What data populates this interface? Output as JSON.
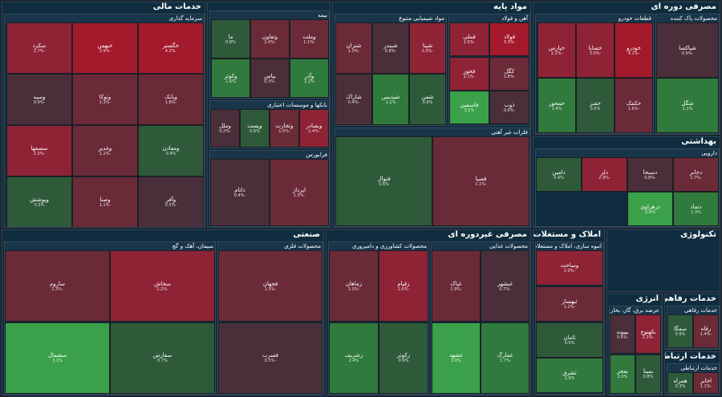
{
  "sectors": {
    "financial": "خدمات مالی",
    "basic_materials": "مواد پایه",
    "consumer_cyclical": "مصرفی دوره ای",
    "healthcare": "بهداشتی",
    "industrial": "صنعتی",
    "consumer_non_cyclical": "مصرفی غیردوره ای",
    "real_estate": "املاک و مستغلات",
    "technology": "تکنولوژی",
    "energy": "انرژی",
    "welfare": "خدمات رفاهی",
    "telecom": "خدمات ارتباطی"
  },
  "industries": [
    {
      "title": "سرمایه گذاری",
      "tiles": [
        [
          "خگستر",
          "-4.2%",
          "r4"
        ],
        [
          "خبهمن",
          "-3.9%",
          "r4"
        ],
        [
          "سکرد",
          "-2.7%",
          "r3"
        ],
        [
          "وبانک",
          "-1.8%",
          "r2"
        ],
        [
          "وتوکا",
          "-1.3%",
          "r2"
        ],
        [
          "وسپه",
          "-0.9%",
          "r1"
        ],
        [
          "ومعادن",
          "0.4%",
          "g1"
        ],
        [
          "وغدیر",
          "-1.2%",
          "r2"
        ],
        [
          "سصفها",
          "-2.3%",
          "r3"
        ],
        [
          "وآفر",
          "-0.5%",
          "r1"
        ],
        [
          "وصنا",
          "-1.1%",
          "r2"
        ],
        [
          "وپوشش",
          "0.3%",
          "g1"
        ]
      ]
    },
    {
      "title": "بیمه",
      "tiles": [
        [
          "وملت",
          "-1.1%",
          "r2"
        ],
        [
          "وتعاون",
          "-1.4%",
          "r2"
        ],
        [
          "ما",
          "0.8%",
          "g1"
        ],
        [
          "وآذر",
          "2.2%",
          "g2"
        ],
        [
          "بپاس",
          "-0.3%",
          "r1"
        ],
        [
          "وکوثر",
          "1.6%",
          "g2"
        ]
      ]
    },
    {
      "title": "بانکها و موسسات اعتباری",
      "tiles": [
        [
          "وبصادر",
          "-2.4%",
          "r3"
        ],
        [
          "وتجارت",
          "-1.0%",
          "r2"
        ],
        [
          "وپست",
          "0.6%",
          "g1"
        ],
        [
          "وملل",
          "-0.2%",
          "r1"
        ]
      ]
    },
    {
      "title": "فرابورس",
      "tiles": [
        [
          "اپرداز",
          "-1.5%",
          "r2"
        ],
        [
          "داتام",
          "-0.4%",
          "r1"
        ]
      ]
    },
    {
      "title": "مواد شیمیایی متنوع",
      "tiles": [
        [
          "شپنا",
          "-2.0%",
          "r3"
        ],
        [
          "شبندر",
          "-0.8%",
          "r1"
        ],
        [
          "شتران",
          "-1.3%",
          "r2"
        ],
        [
          "شفن",
          "0.9%",
          "g1"
        ],
        [
          "شپدیس",
          "1.2%",
          "g2"
        ],
        [
          "شاراک",
          "-0.4%",
          "r1"
        ]
      ]
    },
    {
      "title": "آهن و فولاد",
      "tiles": [
        [
          "فولاد",
          "-3.3%",
          "r4"
        ],
        [
          "فملی",
          "-2.5%",
          "r3"
        ],
        [
          "کگل",
          "-1.8%",
          "r2"
        ],
        [
          "فخوز",
          "-2.1%",
          "r3"
        ],
        [
          "ذوب",
          "-0.6%",
          "r1"
        ],
        [
          "فاسمین",
          "3.5%",
          "g3"
        ]
      ]
    },
    {
      "title": "فلزات غیر آهنی",
      "tiles": [
        [
          "فسپا",
          "-1.1%",
          "r2"
        ],
        [
          "فنوال",
          "0.6%",
          "g1"
        ]
      ]
    },
    {
      "title": "قطعات خودرو",
      "tiles": [
        [
          "خودرو",
          "-4.1%",
          "r4"
        ],
        [
          "خساپا",
          "-3.0%",
          "r3"
        ],
        [
          "خپارس",
          "-2.2%",
          "r3"
        ],
        [
          "خکمک",
          "-1.6%",
          "r2"
        ],
        [
          "خفنر",
          "0.5%",
          "g1"
        ],
        [
          "خمحور",
          "1.4%",
          "g2"
        ]
      ]
    },
    {
      "title": "محصولات پاک کننده",
      "tiles": [
        [
          "شپاکسا",
          "-0.9%",
          "r1"
        ],
        [
          "شگل",
          "1.1%",
          "g2"
        ]
      ]
    },
    {
      "title": "دارویی",
      "tiles": [
        [
          "دجابر",
          "-1.7%",
          "r2"
        ],
        [
          "دسبحا",
          "-0.8%",
          "r1"
        ],
        [
          "دلر",
          "-2.9%",
          "r3"
        ],
        [
          "دامین",
          "0.4%",
          "g1"
        ],
        [
          "دتماد",
          "1.3%",
          "g2"
        ],
        [
          "دزهراوی",
          "2.8%",
          "g3"
        ]
      ]
    },
    {
      "title": "سیمان، آهک و گچ",
      "tiles": [
        [
          "سخاش",
          "-2.2%",
          "r3"
        ],
        [
          "ساروم",
          "-1.3%",
          "r2"
        ],
        [
          "سفارس",
          "0.7%",
          "g1"
        ],
        [
          "سشمال",
          "3.1%",
          "g3"
        ]
      ]
    },
    {
      "title": "محصولات فلزی",
      "tiles": [
        [
          "فجهان",
          "-1.5%",
          "r2"
        ],
        [
          "فسرب",
          "-0.5%",
          "r1"
        ]
      ]
    },
    {
      "title": "انبوه سازی، املاک و مستغلات",
      "tiles": [
        [
          "وساخت",
          "-2.0%",
          "r3"
        ],
        [
          "ثبهساز",
          "-1.2%",
          "r2"
        ],
        [
          "ثامان",
          "0.5%",
          "g1"
        ],
        [
          "ثشرق",
          "1.9%",
          "g2"
        ]
      ]
    },
    {
      "title": "محصولات کشاورزی و دامپروری",
      "tiles": [
        [
          "زقیام",
          "-2.6%",
          "r3"
        ],
        [
          "زماهان",
          "-1.0%",
          "r2"
        ],
        [
          "زکوثر",
          "0.9%",
          "g1"
        ],
        [
          "زشریف",
          "2.4%",
          "g2"
        ]
      ]
    },
    {
      "title": "محصولات غذایی",
      "tiles": [
        [
          "غبشهر",
          "-0.7%",
          "r1"
        ],
        [
          "غپاک",
          "-1.9%",
          "r2"
        ],
        [
          "غمارگ",
          "1.7%",
          "g2"
        ],
        [
          "غشهد",
          "3.0%",
          "g3"
        ]
      ]
    },
    {
      "title": "عرضه برق، گاز، بخار و آب گرم",
      "tiles": [
        [
          "بکهنوج",
          "-2.3%",
          "r3"
        ],
        [
          "بپیوند",
          "-0.6%",
          "r1"
        ],
        [
          "بمپنا",
          "0.8%",
          "g1"
        ],
        [
          "بفجر",
          "2.0%",
          "g2"
        ]
      ]
    },
    {
      "title": "خدمات رفاهی",
      "tiles": [
        [
          "رفاه",
          "-1.4%",
          "r2"
        ],
        [
          "سمگا",
          "0.9%",
          "g1"
        ]
      ]
    },
    {
      "title": "خدمات ارتباطی",
      "tiles": [
        [
          "اخابر",
          "-1.1%",
          "r2"
        ],
        [
          "همراه",
          "0.3%",
          "g1"
        ]
      ]
    }
  ]
}
